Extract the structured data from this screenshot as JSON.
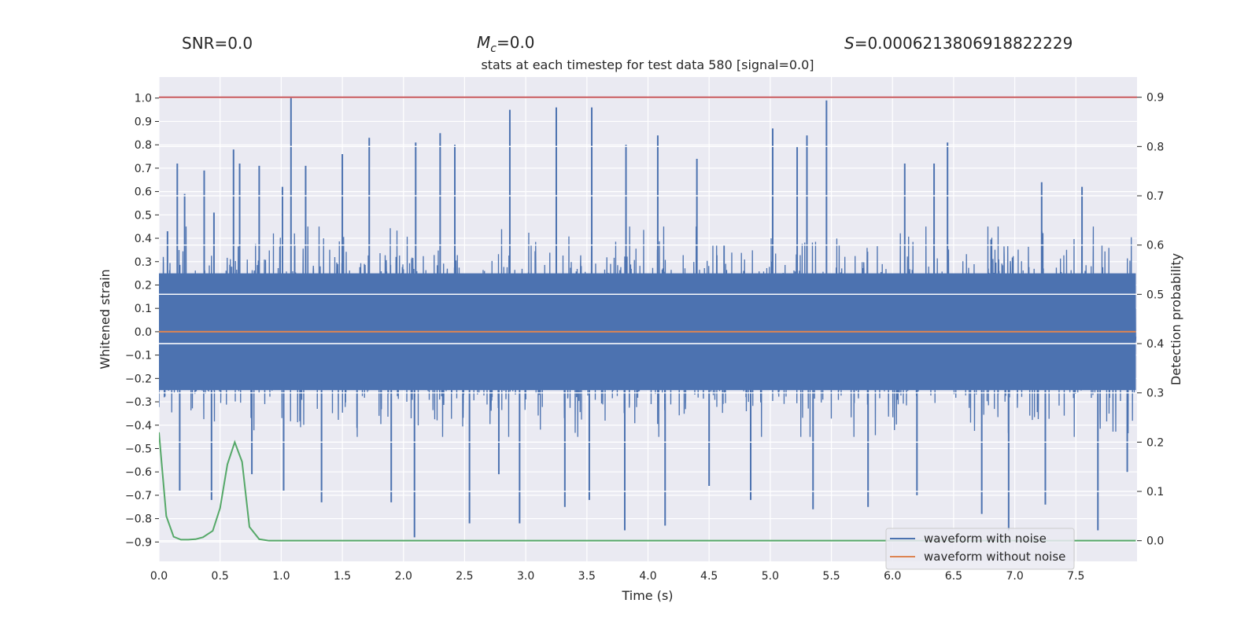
{
  "header": {
    "snr": "SNR=0.0",
    "mc_symbol": "M",
    "mc_subscript": "c",
    "mc_value": "=0.0",
    "s_symbol": "S",
    "s_value": "=0.0006213806918822229"
  },
  "chart_data": {
    "type": "line",
    "title": "stats at each timestep for test data 580 [signal=0.0]",
    "xlabel": "Time (s)",
    "ylabel": "Whitened strain",
    "y2label": "Detection probability",
    "xlim": [
      0.0,
      8.0
    ],
    "ylim": [
      -0.983,
      1.09
    ],
    "y2lim": [
      -0.042,
      0.941
    ],
    "grid": true,
    "legend_position": "lower-right",
    "x_ticks": [
      0.0,
      0.5,
      1.0,
      1.5,
      2.0,
      2.5,
      3.0,
      3.5,
      4.0,
      4.5,
      5.0,
      5.5,
      6.0,
      6.5,
      7.0,
      7.5
    ],
    "x_tick_labels": [
      "0.0",
      "0.5",
      "1.0",
      "1.5",
      "2.0",
      "2.5",
      "3.0",
      "3.5",
      "4.0",
      "4.5",
      "5.0",
      "5.5",
      "6.0",
      "6.5",
      "7.0",
      "7.5"
    ],
    "y_ticks": [
      1.0,
      0.9,
      0.8,
      0.7,
      0.6,
      0.5,
      0.4,
      0.3,
      0.2,
      0.1,
      0.0,
      -0.1,
      -0.2,
      -0.3,
      -0.4,
      -0.5,
      -0.6,
      -0.7,
      -0.8,
      -0.9
    ],
    "y_tick_labels": [
      "1.0",
      "0.9",
      "0.8",
      "0.7",
      "0.6",
      "0.5",
      "0.4",
      "0.3",
      "0.2",
      "0.1",
      "0.0",
      "−0.1",
      "−0.2",
      "−0.3",
      "−0.4",
      "−0.5",
      "−0.6",
      "−0.7",
      "−0.8",
      "−0.9"
    ],
    "y2_ticks": [
      0.9,
      0.8,
      0.7,
      0.6,
      0.5,
      0.4,
      0.3,
      0.2,
      0.1,
      0.0
    ],
    "y2_tick_labels": [
      "0.9",
      "0.8",
      "0.7",
      "0.6",
      "0.5",
      "0.4",
      "0.3",
      "0.2",
      "0.1",
      "0.0"
    ],
    "threshold_line": {
      "axis": "y2",
      "value": 0.9
    },
    "series": [
      {
        "name": "waveform with noise",
        "axis": "y",
        "kind": "dense-noise",
        "color": "#4c72b0",
        "duration_s": 7.99,
        "core_amplitude": 0.25,
        "typical_peak_high": 0.45,
        "typical_peak_low": -0.45,
        "spikes": [
          {
            "x": 0.07,
            "y": 0.43
          },
          {
            "x": 0.15,
            "y": 0.72
          },
          {
            "x": 0.21,
            "y": 0.59
          },
          {
            "x": 0.37,
            "y": 0.69
          },
          {
            "x": 0.45,
            "y": 0.51
          },
          {
            "x": 0.61,
            "y": 0.78
          },
          {
            "x": 0.66,
            "y": 0.72
          },
          {
            "x": 0.82,
            "y": 0.71
          },
          {
            "x": 1.01,
            "y": 0.62
          },
          {
            "x": 1.08,
            "y": 1.0
          },
          {
            "x": 1.2,
            "y": 0.71
          },
          {
            "x": 1.5,
            "y": 0.76
          },
          {
            "x": 1.72,
            "y": 0.83
          },
          {
            "x": 2.1,
            "y": 0.81
          },
          {
            "x": 2.3,
            "y": 0.85
          },
          {
            "x": 2.42,
            "y": 0.8
          },
          {
            "x": 2.87,
            "y": 0.95
          },
          {
            "x": 3.25,
            "y": 0.96
          },
          {
            "x": 3.54,
            "y": 0.96
          },
          {
            "x": 3.82,
            "y": 0.8
          },
          {
            "x": 4.08,
            "y": 0.84
          },
          {
            "x": 4.4,
            "y": 0.74
          },
          {
            "x": 5.02,
            "y": 0.87
          },
          {
            "x": 5.22,
            "y": 0.79
          },
          {
            "x": 5.3,
            "y": 0.84
          },
          {
            "x": 5.46,
            "y": 0.99
          },
          {
            "x": 6.1,
            "y": 0.72
          },
          {
            "x": 6.34,
            "y": 0.72
          },
          {
            "x": 6.45,
            "y": 0.81
          },
          {
            "x": 7.22,
            "y": 0.64
          },
          {
            "x": 7.55,
            "y": 0.62
          },
          {
            "x": 0.17,
            "y": -0.68
          },
          {
            "x": 0.43,
            "y": -0.72
          },
          {
            "x": 0.76,
            "y": -0.61
          },
          {
            "x": 1.02,
            "y": -0.68
          },
          {
            "x": 1.33,
            "y": -0.73
          },
          {
            "x": 1.9,
            "y": -0.73
          },
          {
            "x": 2.09,
            "y": -0.88
          },
          {
            "x": 2.54,
            "y": -0.82
          },
          {
            "x": 2.78,
            "y": -0.61
          },
          {
            "x": 2.95,
            "y": -0.82
          },
          {
            "x": 3.32,
            "y": -0.75
          },
          {
            "x": 3.52,
            "y": -0.72
          },
          {
            "x": 3.81,
            "y": -0.85
          },
          {
            "x": 4.14,
            "y": -0.83
          },
          {
            "x": 4.5,
            "y": -0.66
          },
          {
            "x": 4.84,
            "y": -0.72
          },
          {
            "x": 5.35,
            "y": -0.76
          },
          {
            "x": 5.8,
            "y": -0.75
          },
          {
            "x": 6.2,
            "y": -0.7
          },
          {
            "x": 6.73,
            "y": -0.78
          },
          {
            "x": 6.95,
            "y": -0.85
          },
          {
            "x": 7.25,
            "y": -0.74
          },
          {
            "x": 7.68,
            "y": -0.85
          },
          {
            "x": 7.92,
            "y": -0.6
          }
        ]
      },
      {
        "name": "waveform without noise",
        "axis": "y",
        "kind": "line",
        "color": "#dd8452",
        "x": [
          0.0,
          7.99
        ],
        "y": [
          0.0,
          0.0
        ]
      },
      {
        "name": "detection probability",
        "axis": "y2",
        "kind": "line",
        "color": "#55a868",
        "x": [
          0.0,
          0.06,
          0.12,
          0.18,
          0.24,
          0.3,
          0.36,
          0.44,
          0.5,
          0.56,
          0.62,
          0.68,
          0.74,
          0.82,
          0.9,
          1.0,
          1.5,
          2.0,
          3.0,
          4.0,
          5.0,
          6.0,
          7.0,
          7.99
        ],
        "y": [
          0.22,
          0.05,
          0.008,
          0.002,
          0.002,
          0.003,
          0.007,
          0.02,
          0.066,
          0.155,
          0.2,
          0.16,
          0.028,
          0.003,
          0.0,
          0.0,
          0.0,
          0.0,
          0.0,
          0.0,
          0.0,
          0.0,
          0.0,
          0.0
        ]
      }
    ],
    "legend": {
      "entries": [
        {
          "label": "waveform with noise",
          "color": "#4c72b0"
        },
        {
          "label": "waveform without noise",
          "color": "#dd8452"
        }
      ]
    }
  }
}
